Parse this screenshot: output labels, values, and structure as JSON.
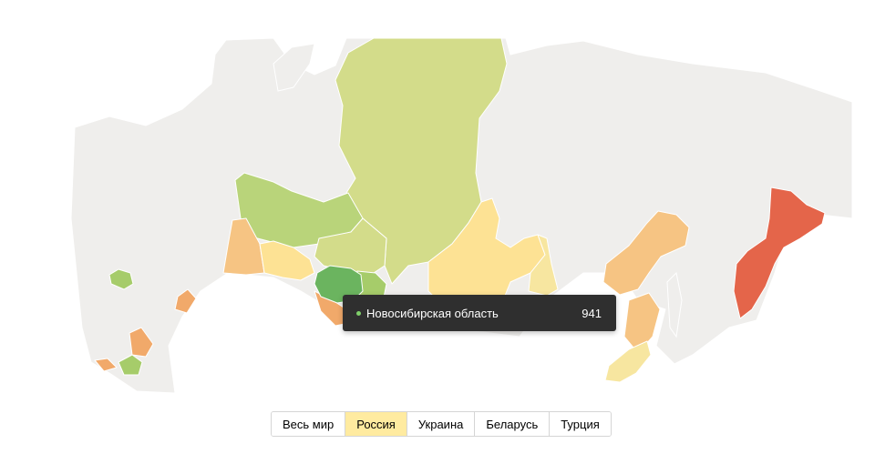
{
  "colors": {
    "land": "#efeeec",
    "scale_light_green": "#d3dc8a",
    "scale_mid_green": "#b9d47a",
    "scale_green": "#a6cc6a",
    "scale_dark_green": "#6bb45f",
    "scale_light_yellow": "#f7e6a0",
    "scale_yellow": "#fde294",
    "scale_light_orange": "#f6c483",
    "scale_orange": "#f1a96a",
    "scale_red": "#e4654a",
    "tooltip_dot": "#7fcf6a",
    "tab_active_bg": "#ffeba0"
  },
  "map": {
    "highlighted_region": "Новосибирская область",
    "regions": [
      {
        "id": "krasnoyarsk",
        "color_key": "scale_light_green"
      },
      {
        "id": "tyumen-khanty",
        "color_key": "scale_mid_green"
      },
      {
        "id": "tomsk",
        "color_key": "scale_light_green"
      },
      {
        "id": "sverdlovsk",
        "color_key": "scale_light_orange"
      },
      {
        "id": "omsk",
        "color_key": "scale_yellow"
      },
      {
        "id": "novosibirsk",
        "color_key": "scale_dark_green"
      },
      {
        "id": "kemerovo",
        "color_key": "scale_green"
      },
      {
        "id": "altai",
        "color_key": "scale_orange"
      },
      {
        "id": "irkutsk",
        "color_key": "scale_yellow"
      },
      {
        "id": "buryatia",
        "color_key": "scale_light_yellow"
      },
      {
        "id": "khabarovsk",
        "color_key": "scale_light_orange"
      },
      {
        "id": "amur-jewish",
        "color_key": "scale_light_orange"
      },
      {
        "id": "primorye",
        "color_key": "scale_light_yellow"
      },
      {
        "id": "kamchatka",
        "color_key": "scale_red"
      },
      {
        "id": "moscow-area",
        "color_key": "scale_green"
      },
      {
        "id": "samara",
        "color_key": "scale_orange"
      },
      {
        "id": "volgograd",
        "color_key": "scale_orange"
      },
      {
        "id": "krasnodar",
        "color_key": "scale_orange"
      },
      {
        "id": "stavropol",
        "color_key": "scale_green"
      }
    ]
  },
  "tooltip": {
    "region_name": "Новосибирская область",
    "value": "941"
  },
  "tabs": [
    {
      "label": "Весь мир",
      "active": false
    },
    {
      "label": "Россия",
      "active": true
    },
    {
      "label": "Украина",
      "active": false
    },
    {
      "label": "Беларусь",
      "active": false
    },
    {
      "label": "Турция",
      "active": false
    }
  ]
}
